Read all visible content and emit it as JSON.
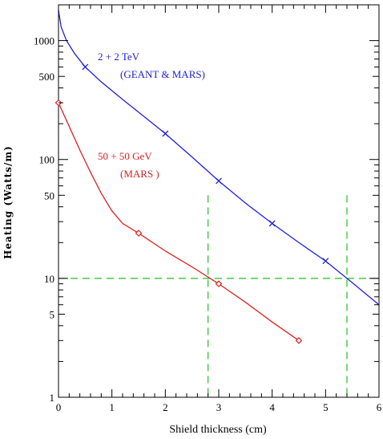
{
  "chart_data": {
    "type": "line",
    "xlabel": "Shield thickness (cm)",
    "ylabel": "Heating   (Watts/m)",
    "xlim": [
      0,
      6
    ],
    "ylim": [
      1,
      2000
    ],
    "yscale": "log",
    "x_ticks": [
      0,
      1,
      2,
      3,
      4,
      5,
      6
    ],
    "x_tick_labels": [
      "0",
      "1",
      "2",
      "3",
      "4",
      "5",
      "6"
    ],
    "y_ticks": [
      1,
      5,
      10,
      50,
      100,
      500,
      1000
    ],
    "y_tick_labels": [
      "1",
      "5",
      "10",
      "50",
      "100",
      "500",
      "1000"
    ],
    "grid": false,
    "series": [
      {
        "labels": [
          "2 + 2 TeV",
          "(GEANT & MARS)"
        ],
        "color": "#2020e0",
        "marker": "x",
        "curve_x": [
          0,
          0.05,
          0.15,
          0.3,
          0.5,
          0.8,
          1.2,
          1.6,
          2.0,
          2.5,
          3.0,
          3.5,
          4.0,
          4.5,
          5.0,
          5.5,
          6.0
        ],
        "curve_y": [
          1800,
          1300,
          1000,
          780,
          600,
          450,
          320,
          230,
          165,
          105,
          66,
          43,
          29,
          20,
          14,
          9.2,
          6.0
        ],
        "marker_x": [
          0.5,
          2.0,
          3.0,
          4.0,
          5.0
        ],
        "marker_y": [
          600,
          165,
          66,
          29,
          14
        ]
      },
      {
        "labels": [
          "50 + 50 GeV",
          "(MARS )"
        ],
        "color": "#e02020",
        "marker": "diamond",
        "curve_x": [
          0,
          0.2,
          0.4,
          0.6,
          0.8,
          1.0,
          1.2,
          1.5,
          2.0,
          2.5,
          3.0,
          3.5,
          4.0,
          4.5
        ],
        "curve_y": [
          300,
          190,
          120,
          78,
          52,
          37,
          29,
          24,
          17,
          12.5,
          9,
          6.3,
          4.3,
          3.0
        ],
        "marker_x": [
          0,
          1.5,
          3.0,
          4.5
        ],
        "marker_y": [
          300,
          24,
          9,
          3.0
        ]
      }
    ],
    "reference_lines": {
      "color": "#20c020",
      "horizontal_y": 10,
      "vertical_x": [
        2.8,
        5.4
      ],
      "vertical_top_y": 50
    }
  }
}
